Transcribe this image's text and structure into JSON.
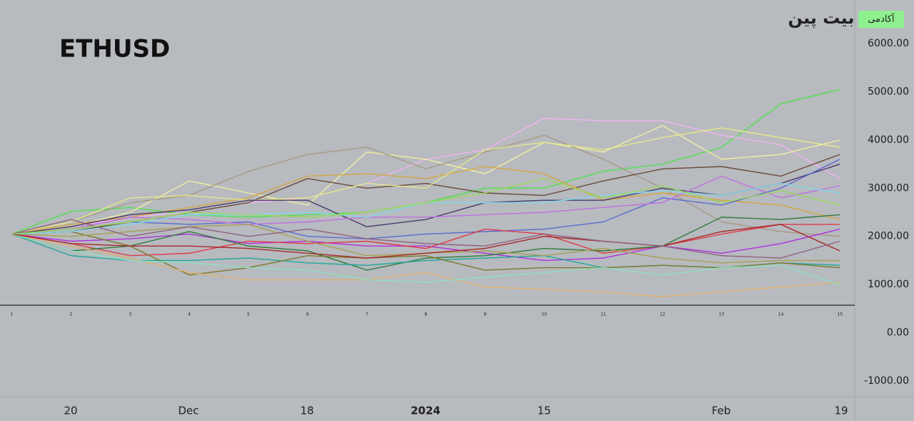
{
  "logo": {
    "brand": "بیت پین",
    "badge": "آکادمی"
  },
  "chart_data": {
    "type": "line",
    "title": "ETHUSD",
    "x": [
      1,
      2,
      3,
      4,
      5,
      6,
      7,
      8,
      9,
      10,
      11,
      12,
      13,
      14,
      15
    ],
    "date_labels": [
      "20",
      "Dec",
      "18",
      "2024",
      "15",
      "Feb",
      "19"
    ],
    "xlim": [
      0.8,
      15.25
    ],
    "ylim": [
      -1326,
      6905
    ],
    "yticks": [
      {
        "value": 6000,
        "label": "6000.00"
      },
      {
        "value": 5000,
        "label": "5000.00"
      },
      {
        "value": 4000,
        "label": "4000.00"
      },
      {
        "value": 3000,
        "label": "3000.00"
      },
      {
        "value": 2000,
        "label": "2000.00"
      },
      {
        "value": 1000,
        "label": "1000.00"
      },
      {
        "value": 0,
        "label": "0.00"
      },
      {
        "value": -1000,
        "label": "-1000.00"
      }
    ],
    "series": [
      {
        "color": "#4ee24e",
        "values": [
          2050,
          2520,
          2600,
          2450,
          2400,
          2450,
          2500,
          2700,
          3000,
          3000,
          3350,
          3500,
          3850,
          4750,
          5050
        ]
      },
      {
        "color": "#f0b4f0",
        "values": [
          2050,
          2200,
          2400,
          2500,
          2700,
          2800,
          3100,
          3600,
          3800,
          4450,
          4400,
          4400,
          4100,
          3900,
          3200
        ]
      },
      {
        "color": "#f0f0a0",
        "values": [
          2050,
          2200,
          2500,
          3150,
          2900,
          2650,
          3750,
          3600,
          3300,
          3950,
          3750,
          4300,
          3600,
          3700,
          4000
        ]
      },
      {
        "color": "#a89a86",
        "values": [
          2050,
          2300,
          2700,
          2850,
          3350,
          3700,
          3850,
          3400,
          3750,
          4100,
          3600,
          3000,
          2300,
          2100,
          2000
        ]
      },
      {
        "color": "#6b4a3a",
        "values": [
          2050,
          2100,
          2300,
          2500,
          2700,
          3200,
          3000,
          3100,
          2900,
          2850,
          3150,
          3400,
          3450,
          3250,
          3700
        ]
      },
      {
        "color": "#d4a640",
        "values": [
          2050,
          2250,
          2400,
          2600,
          2800,
          3250,
          3300,
          3200,
          3450,
          3300,
          2750,
          2900,
          2750,
          2650,
          2350
        ]
      },
      {
        "color": "#e4e888",
        "values": [
          2050,
          2300,
          2800,
          2850,
          2750,
          2800,
          3100,
          3000,
          3800,
          3950,
          3800,
          4050,
          4250,
          4050,
          3850
        ]
      },
      {
        "color": "#4a3a6a",
        "values": [
          2050,
          2200,
          2450,
          2550,
          2750,
          2750,
          2200,
          2350,
          2700,
          2750,
          2750,
          3000,
          2850,
          3100,
          3500
        ]
      },
      {
        "color": "#5a6ad0",
        "values": [
          2050,
          2150,
          2300,
          2250,
          2300,
          2000,
          1950,
          2050,
          2100,
          2150,
          2300,
          2800,
          2650,
          3000,
          3600
        ]
      },
      {
        "color": "#c070e0",
        "values": [
          2050,
          2150,
          2400,
          2350,
          2250,
          2300,
          2400,
          2400,
          2450,
          2500,
          2600,
          2700,
          3250,
          2800,
          3050
        ]
      },
      {
        "color": "#b030e0",
        "values": [
          2050,
          1900,
          1950,
          2050,
          1850,
          1900,
          1800,
          1800,
          1650,
          1500,
          1550,
          1800,
          1650,
          1850,
          2150
        ]
      },
      {
        "color": "#e03a4a",
        "values": [
          2050,
          1850,
          1600,
          1650,
          1900,
          1850,
          1900,
          1750,
          2150,
          2050,
          1650,
          1800,
          2050,
          2250,
          2250
        ]
      },
      {
        "color": "#2f7a3a",
        "values": [
          2050,
          1700,
          1800,
          2100,
          1800,
          1700,
          1300,
          1550,
          1600,
          1750,
          1700,
          1800,
          2400,
          2350,
          2450
        ]
      },
      {
        "color": "#1fa89a",
        "values": [
          2050,
          1600,
          1500,
          1500,
          1550,
          1450,
          1400,
          1500,
          1550,
          1600,
          1350,
          1400,
          1350,
          1450,
          1400
        ]
      },
      {
        "color": "#7c7a2a",
        "values": [
          2050,
          2100,
          1800,
          1200,
          1350,
          1600,
          1550,
          1600,
          1300,
          1350,
          1350,
          1400,
          1350,
          1450,
          1350
        ]
      },
      {
        "color": "#e0b070",
        "values": [
          2050,
          1800,
          1550,
          1250,
          1100,
          1100,
          1100,
          1250,
          950,
          900,
          850,
          750,
          850,
          950,
          1050
        ]
      },
      {
        "color": "#8ee0c0",
        "values": [
          2050,
          1700,
          1500,
          1450,
          1350,
          1300,
          1100,
          1050,
          1150,
          1250,
          1350,
          1200,
          1350,
          1400,
          1000
        ]
      },
      {
        "color": "#a6a050",
        "values": [
          2050,
          2000,
          2100,
          2200,
          2250,
          1900,
          1600,
          1650,
          1700,
          1600,
          1750,
          1550,
          1450,
          1500,
          1500
        ]
      },
      {
        "color": "#80d8e8",
        "values": [
          2050,
          2100,
          2250,
          2450,
          2450,
          2500,
          2400,
          2700,
          2700,
          2700,
          2850,
          2950,
          2850,
          3100,
          2900
        ]
      },
      {
        "color": "#a82828",
        "values": [
          2050,
          1850,
          1800,
          1800,
          1750,
          1650,
          1550,
          1650,
          1750,
          2000,
          1900,
          1800,
          2100,
          2250,
          1700
        ]
      },
      {
        "color": "#906080",
        "values": [
          2050,
          2350,
          2000,
          2200,
          2000,
          2150,
          1950,
          1850,
          1800,
          2050,
          1900,
          1800,
          1600,
          1550,
          1900
        ]
      },
      {
        "color": "#98d858",
        "values": [
          2050,
          2150,
          2300,
          2500,
          2450,
          2400,
          2500,
          2700,
          2900,
          3200,
          2800,
          3050,
          2700,
          2950,
          2650
        ]
      }
    ]
  }
}
